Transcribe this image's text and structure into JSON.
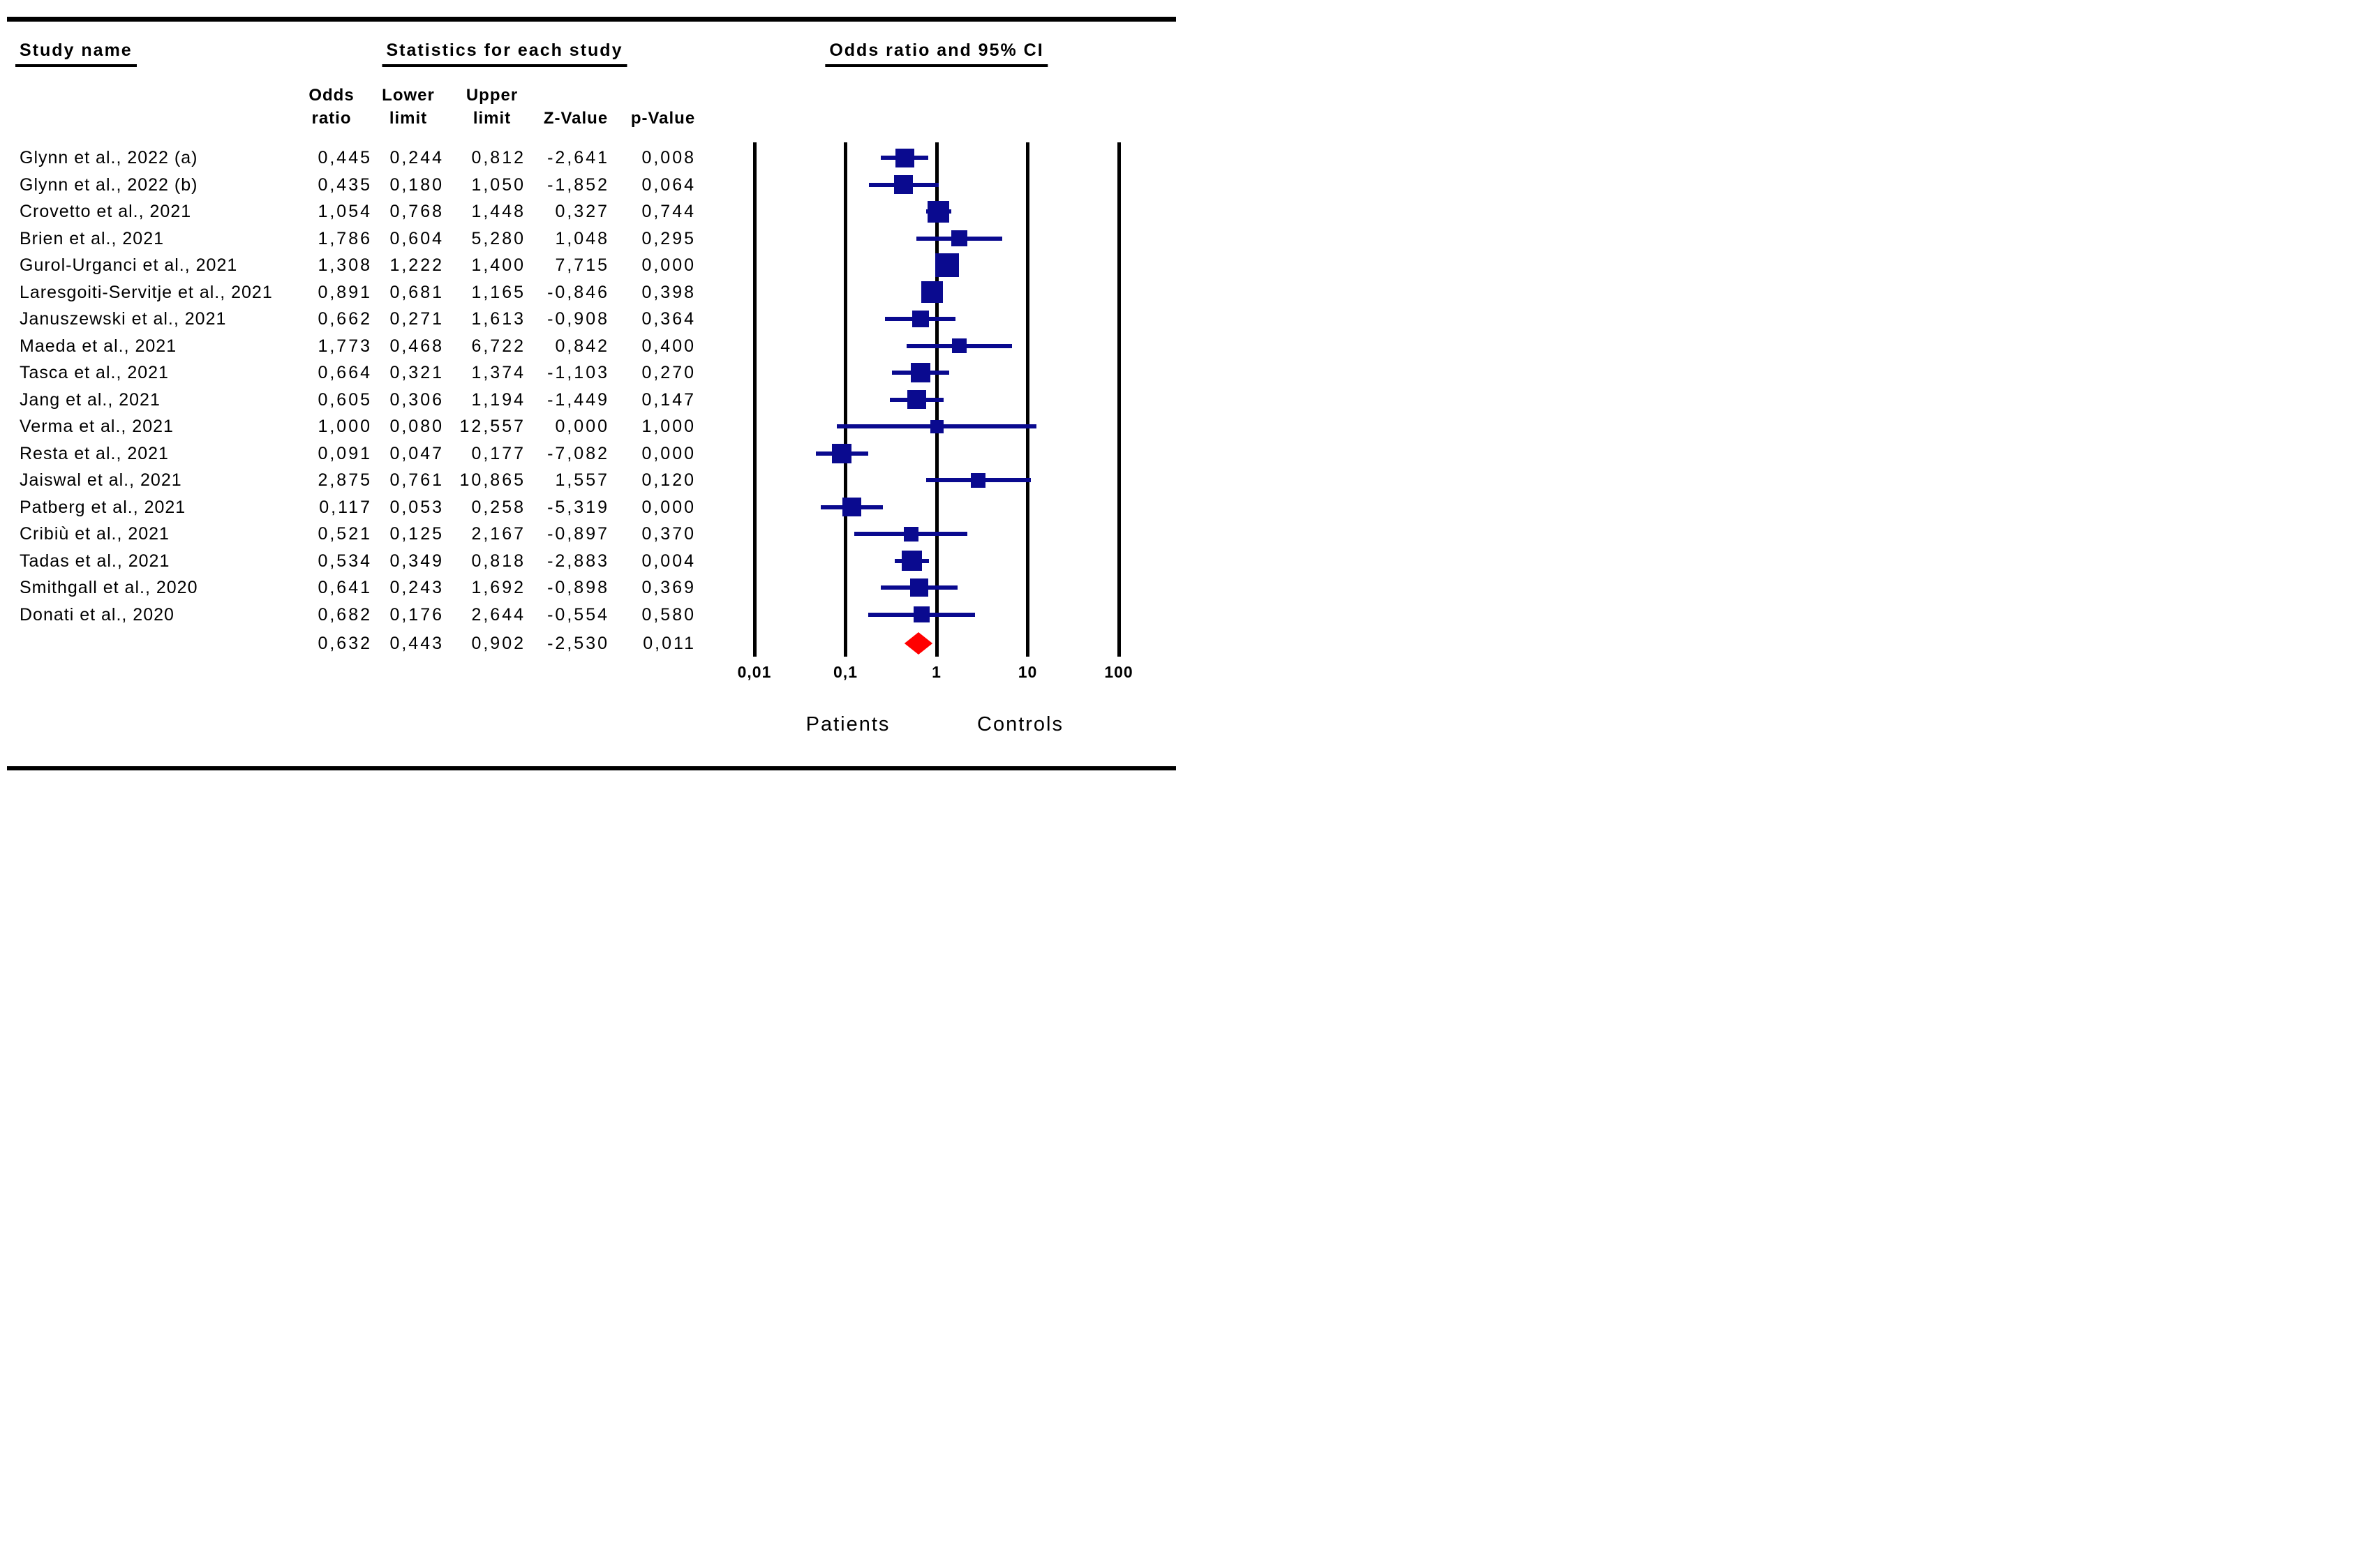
{
  "headers": {
    "study_column_title": "Study name",
    "stats_column_title": "Statistics for each study",
    "plot_column_title": "Odds ratio and 95% CI",
    "stat_columns": {
      "odds": [
        "Odds",
        "ratio"
      ],
      "lower": [
        "Lower",
        "limit"
      ],
      "upper": [
        "Upper",
        "limit"
      ],
      "z": [
        "Z-Value"
      ],
      "p": [
        "p-Value"
      ]
    }
  },
  "chart_data": {
    "type": "forest",
    "x_scale": "log10",
    "xlim": [
      0.01,
      100
    ],
    "x_ticks": [
      {
        "label": "0,01",
        "value": 0.01
      },
      {
        "label": "0,1",
        "value": 0.1
      },
      {
        "label": "1",
        "value": 1
      },
      {
        "label": "10",
        "value": 10
      },
      {
        "label": "100",
        "value": 100
      }
    ],
    "favours_left_label": "Patients",
    "favours_right_label": "Controls",
    "colors": {
      "marker": "#0a0a8f",
      "ci_line": "#0a0a8f",
      "summary_diamond": "#ff0000",
      "axis_line": "#000000"
    },
    "studies": [
      {
        "name": "Glynn et al., 2022 (a)",
        "odds_ratio": "0,445",
        "lower_limit": "0,244",
        "upper_limit": "0,812",
        "z_value": "-2,641",
        "p_value": "0,008",
        "marker_size": 27
      },
      {
        "name": "Glynn et al., 2022 (b)",
        "odds_ratio": "0,435",
        "lower_limit": "0,180",
        "upper_limit": "1,050",
        "z_value": "-1,852",
        "p_value": "0,064",
        "marker_size": 27
      },
      {
        "name": "Crovetto et al., 2021",
        "odds_ratio": "1,054",
        "lower_limit": "0,768",
        "upper_limit": "1,448",
        "z_value": "0,327",
        "p_value": "0,744",
        "marker_size": 31
      },
      {
        "name": "Brien et al., 2021",
        "odds_ratio": "1,786",
        "lower_limit": "0,604",
        "upper_limit": "5,280",
        "z_value": "1,048",
        "p_value": "0,295",
        "marker_size": 23
      },
      {
        "name": "Gurol-Urganci et al., 2021",
        "odds_ratio": "1,308",
        "lower_limit": "1,222",
        "upper_limit": "1,400",
        "z_value": "7,715",
        "p_value": "0,000",
        "marker_size": 34
      },
      {
        "name": "Laresgoiti-Servitje et al., 2021",
        "odds_ratio": "0,891",
        "lower_limit": "0,681",
        "upper_limit": "1,165",
        "z_value": "-0,846",
        "p_value": "0,398",
        "marker_size": 31
      },
      {
        "name": "Januszewski et al., 2021",
        "odds_ratio": "0,662",
        "lower_limit": "0,271",
        "upper_limit": "1,613",
        "z_value": "-0,908",
        "p_value": "0,364",
        "marker_size": 24
      },
      {
        "name": "Maeda et al., 2021",
        "odds_ratio": "1,773",
        "lower_limit": "0,468",
        "upper_limit": "6,722",
        "z_value": "0,842",
        "p_value": "0,400",
        "marker_size": 21
      },
      {
        "name": "Tasca et al., 2021",
        "odds_ratio": "0,664",
        "lower_limit": "0,321",
        "upper_limit": "1,374",
        "z_value": "-1,103",
        "p_value": "0,270",
        "marker_size": 28
      },
      {
        "name": "Jang et al., 2021",
        "odds_ratio": "0,605",
        "lower_limit": "0,306",
        "upper_limit": "1,194",
        "z_value": "-1,449",
        "p_value": "0,147",
        "marker_size": 27
      },
      {
        "name": "Verma et al., 2021",
        "odds_ratio": "1,000",
        "lower_limit": "0,080",
        "upper_limit": "12,557",
        "z_value": "0,000",
        "p_value": "1,000",
        "marker_size": 19
      },
      {
        "name": "Resta et al., 2021",
        "odds_ratio": "0,091",
        "lower_limit": "0,047",
        "upper_limit": "0,177",
        "z_value": "-7,082",
        "p_value": "0,000",
        "marker_size": 28
      },
      {
        "name": "Jaiswal et al., 2021",
        "odds_ratio": "2,875",
        "lower_limit": "0,761",
        "upper_limit": "10,865",
        "z_value": "1,557",
        "p_value": "0,120",
        "marker_size": 21
      },
      {
        "name": "Patberg et al., 2021",
        "odds_ratio": "0,117",
        "lower_limit": "0,053",
        "upper_limit": "0,258",
        "z_value": "-5,319",
        "p_value": "0,000",
        "marker_size": 27
      },
      {
        "name": "Cribiù et al., 2021",
        "odds_ratio": "0,521",
        "lower_limit": "0,125",
        "upper_limit": "2,167",
        "z_value": "-0,897",
        "p_value": "0,370",
        "marker_size": 21
      },
      {
        "name": "Tadas et al., 2021",
        "odds_ratio": "0,534",
        "lower_limit": "0,349",
        "upper_limit": "0,818",
        "z_value": "-2,883",
        "p_value": "0,004",
        "marker_size": 29
      },
      {
        "name": "Smithgall et al., 2020",
        "odds_ratio": "0,641",
        "lower_limit": "0,243",
        "upper_limit": "1,692",
        "z_value": "-0,898",
        "p_value": "0,369",
        "marker_size": 26
      },
      {
        "name": "Donati et al., 2020",
        "odds_ratio": "0,682",
        "lower_limit": "0,176",
        "upper_limit": "2,644",
        "z_value": "-0,554",
        "p_value": "0,580",
        "marker_size": 23
      }
    ],
    "summary": {
      "odds_ratio": "0,632",
      "lower_limit": "0,443",
      "upper_limit": "0,902",
      "z_value": "-2,530",
      "p_value": "0,011"
    }
  }
}
